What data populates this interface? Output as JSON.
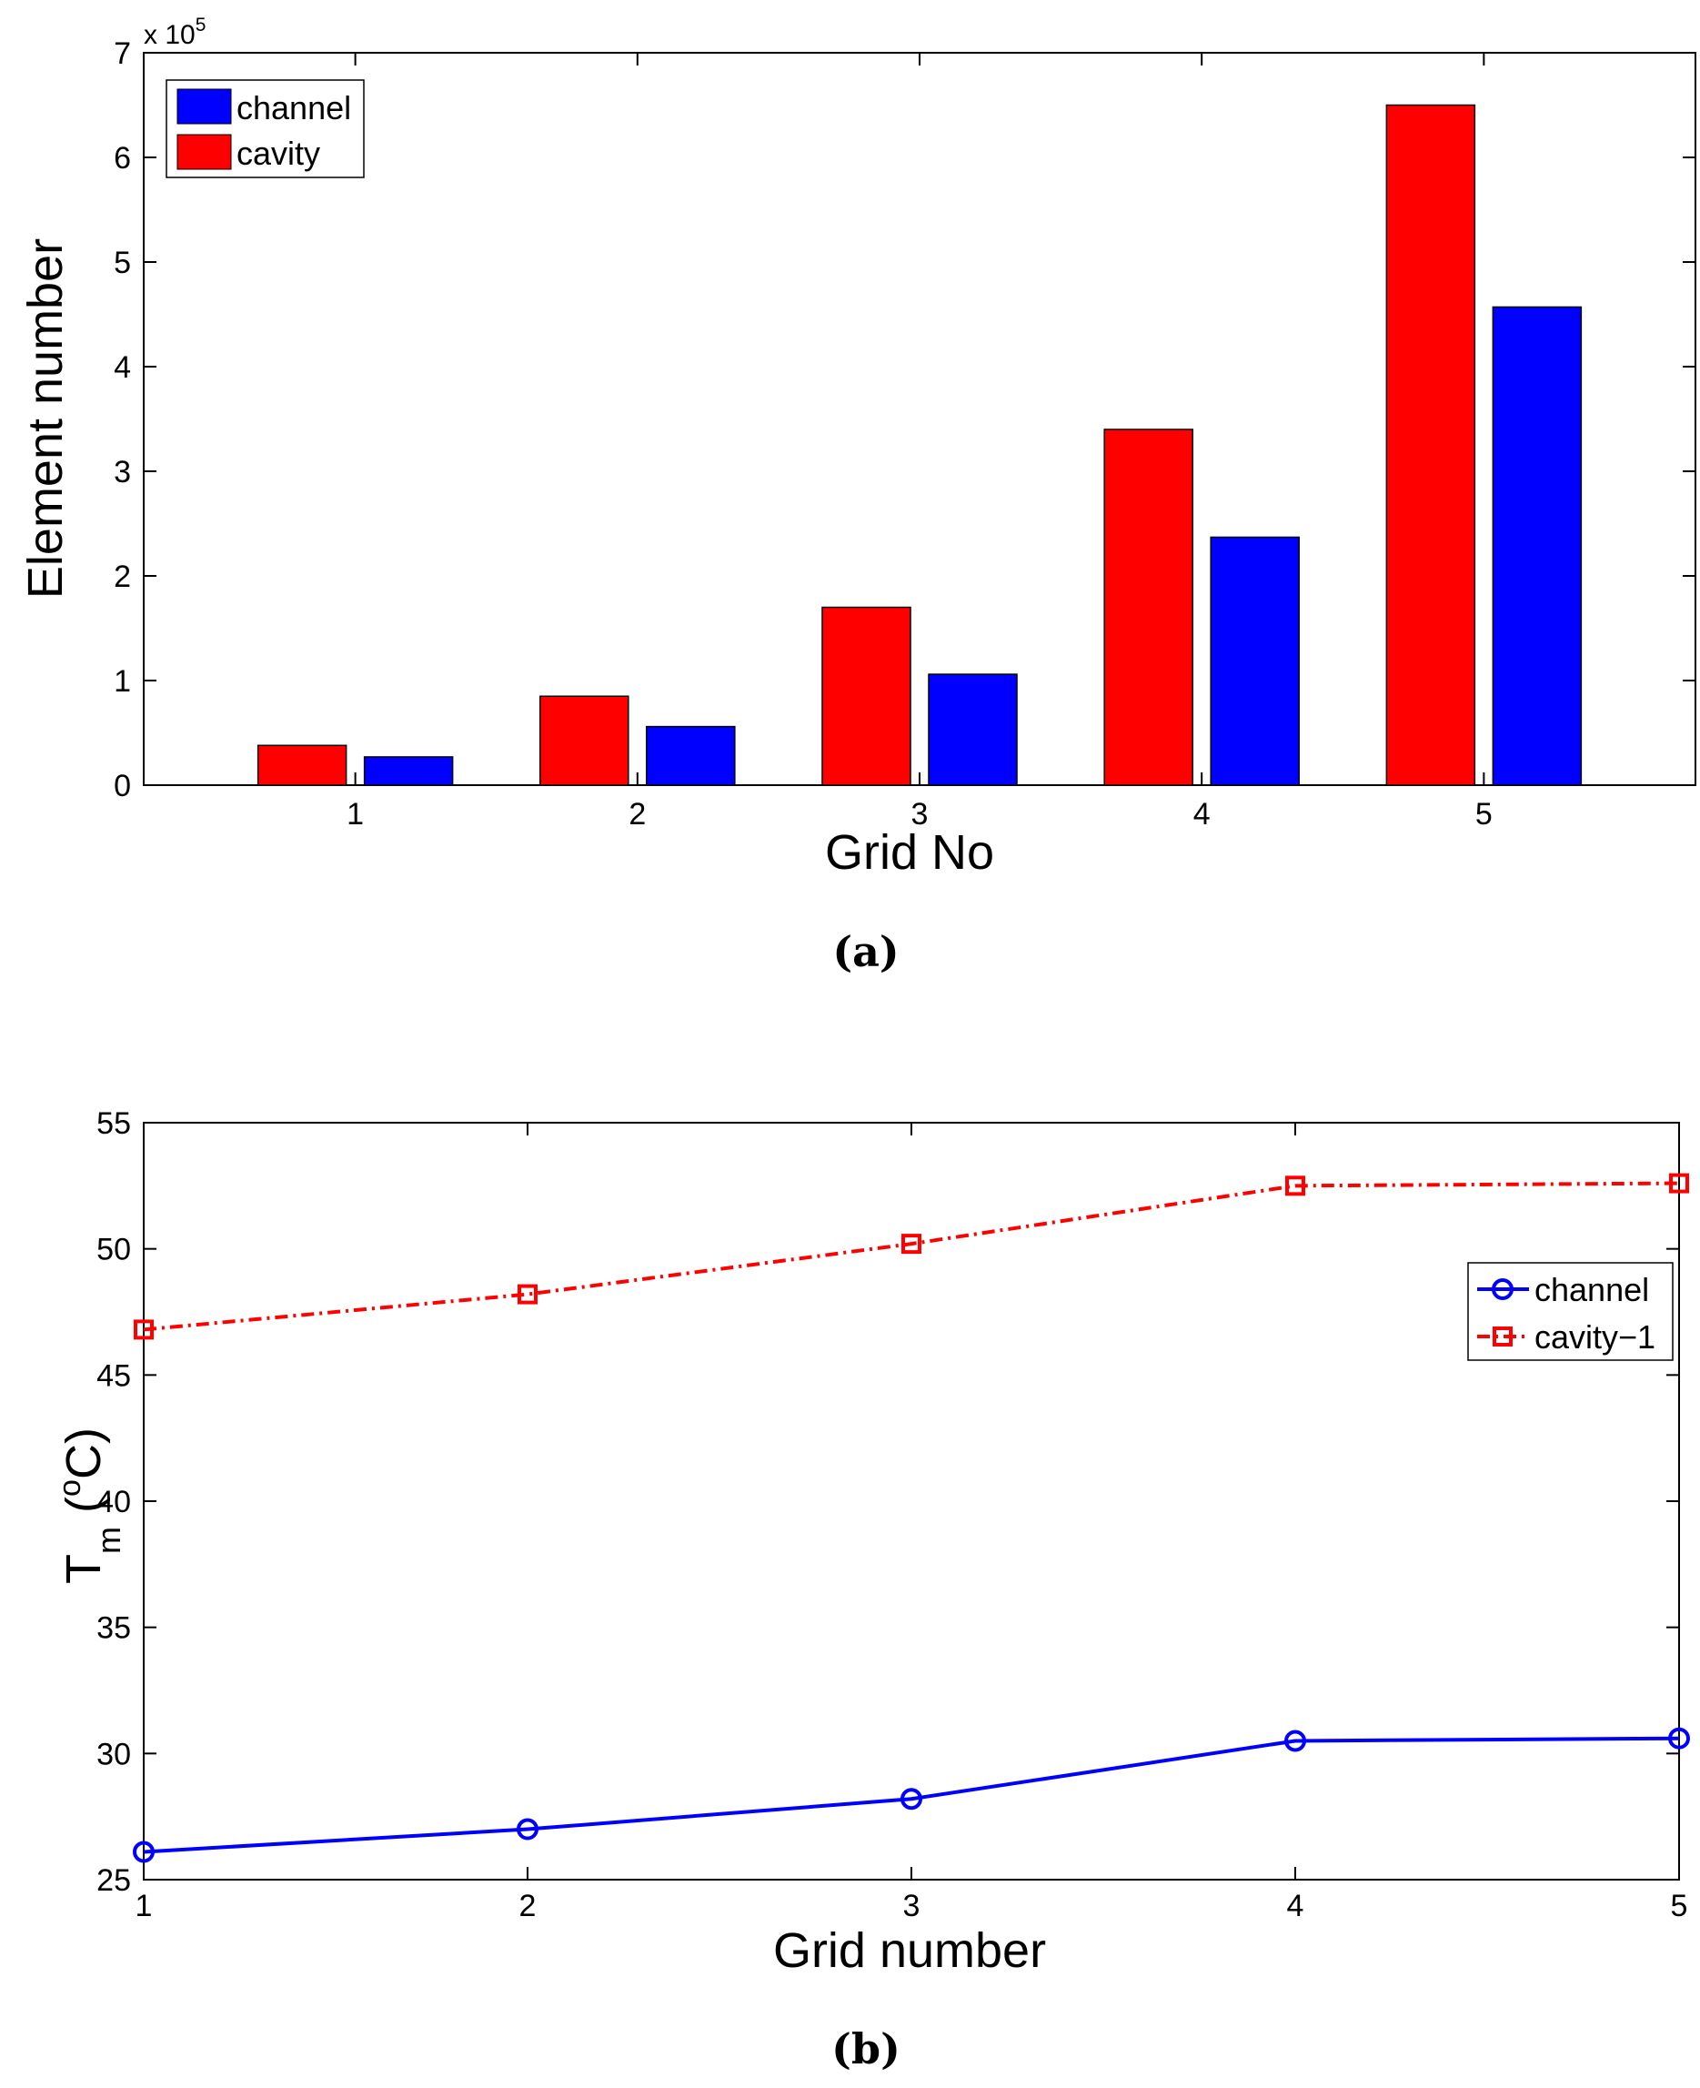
{
  "chart_data": [
    {
      "type": "bar",
      "categories": [
        "1",
        "2",
        "3",
        "4",
        "5"
      ],
      "series": [
        {
          "name": "cavity",
          "color": "#ff0000",
          "values": [
            38000,
            85000,
            170000,
            340000,
            650000
          ]
        },
        {
          "name": "channel",
          "color": "#0000ff",
          "values": [
            27000,
            56000,
            106000,
            237000,
            457000
          ]
        }
      ],
      "title": "",
      "xlabel": "Grid No",
      "ylabel": "Element number",
      "ylim": [
        0,
        700000
      ],
      "ytick_labels": [
        "0",
        "1",
        "2",
        "3",
        "4",
        "5",
        "6",
        "7"
      ],
      "exponent_label": {
        "base": "x 10",
        "power": "5"
      },
      "legend": {
        "placement": "top-left",
        "entries": [
          {
            "label": "channel",
            "color": "#0000ff"
          },
          {
            "label": "cavity",
            "color": "#ff0000"
          }
        ]
      },
      "caption": "(a)"
    },
    {
      "type": "line",
      "x": [
        1,
        2,
        3,
        4,
        5
      ],
      "series": [
        {
          "name": "channel",
          "color": "#0000ff",
          "marker": "circle",
          "linestyle": "solid",
          "values": [
            26.1,
            27.0,
            28.2,
            30.5,
            30.6
          ]
        },
        {
          "name": "cavity−1",
          "color": "#ff0000",
          "marker": "square",
          "linestyle": "dash-dot",
          "values": [
            46.8,
            48.2,
            50.2,
            52.5,
            52.6
          ]
        }
      ],
      "title": "",
      "xlabel": "Grid number",
      "ylabel": {
        "main": "T",
        "subscript": "m",
        "open": " (",
        "superscript": "o",
        "unit": "C)"
      },
      "xlim": [
        1,
        5
      ],
      "ylim": [
        25,
        55
      ],
      "xtick_labels": [
        "1",
        "2",
        "3",
        "4",
        "5"
      ],
      "ytick_labels": [
        "25",
        "30",
        "35",
        "40",
        "45",
        "50",
        "55"
      ],
      "legend": {
        "placement": "right",
        "entries": [
          {
            "label": "channel",
            "color": "#0000ff"
          },
          {
            "label": "cavity−1",
            "color": "#ff0000"
          }
        ]
      },
      "caption": "(b)"
    }
  ]
}
